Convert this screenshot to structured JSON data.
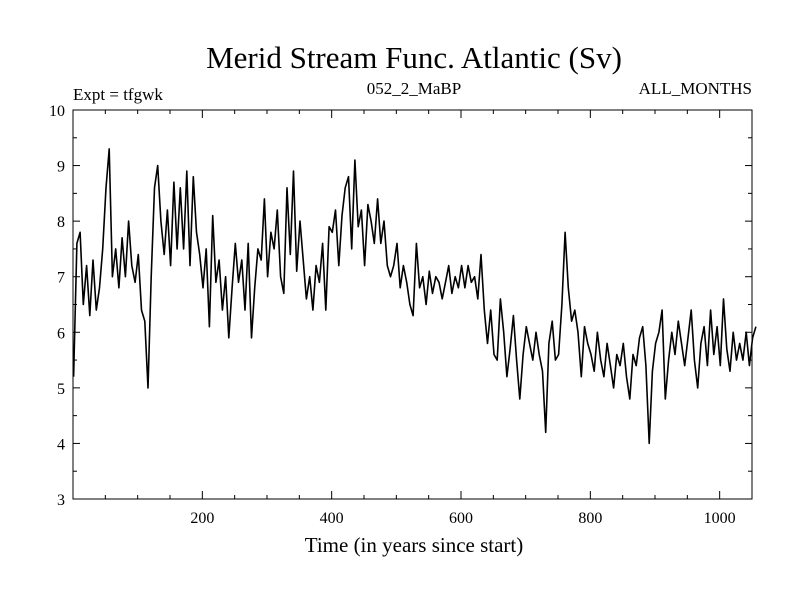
{
  "chart_data": {
    "type": "line",
    "title": "Merid Stream Func. Atlantic (Sv)",
    "subtitle_left": "Expt = tfgwk",
    "subtitle_center": "052_2_MaBP",
    "subtitle_right": "ALL_MONTHS",
    "xlabel": "Time (in years since start)",
    "ylabel": "",
    "xlim": [
      0,
      1050
    ],
    "ylim": [
      3,
      10
    ],
    "x_ticks": [
      200,
      400,
      600,
      800,
      1000
    ],
    "y_ticks": [
      3,
      4,
      5,
      6,
      7,
      8,
      9,
      10
    ],
    "grid": false,
    "line_color": "#000000",
    "series": [
      {
        "name": "Merid Stream Func. Atlantic",
        "x_start": 1,
        "x_step": 5,
        "values": [
          5.2,
          7.6,
          7.8,
          6.5,
          7.2,
          6.3,
          7.3,
          6.4,
          6.8,
          7.5,
          8.6,
          9.3,
          7.0,
          7.5,
          6.8,
          7.7,
          7.0,
          8.0,
          7.2,
          6.9,
          7.4,
          6.4,
          6.2,
          5.0,
          7.0,
          8.6,
          9.0,
          8.0,
          7.4,
          8.2,
          7.2,
          8.7,
          7.5,
          8.6,
          7.5,
          8.9,
          7.2,
          8.8,
          7.8,
          7.4,
          6.8,
          7.5,
          6.1,
          8.1,
          6.9,
          7.3,
          6.4,
          7.0,
          5.9,
          6.8,
          7.6,
          6.9,
          7.3,
          6.4,
          7.6,
          5.9,
          6.8,
          7.5,
          7.3,
          8.4,
          7.0,
          7.8,
          7.5,
          8.2,
          7.0,
          6.7,
          8.6,
          7.4,
          8.9,
          7.1,
          8.0,
          7.3,
          6.6,
          7.0,
          6.4,
          7.2,
          6.9,
          7.6,
          6.4,
          7.9,
          7.8,
          8.2,
          7.2,
          8.1,
          8.6,
          8.8,
          7.5,
          9.1,
          7.9,
          8.2,
          7.2,
          8.3,
          8.0,
          7.6,
          8.4,
          7.6,
          8.0,
          7.2,
          7.0,
          7.2,
          7.6,
          6.8,
          7.2,
          6.9,
          6.5,
          6.3,
          7.6,
          6.8,
          7.0,
          6.5,
          7.1,
          6.7,
          7.0,
          6.9,
          6.6,
          6.9,
          7.2,
          6.7,
          7.0,
          6.8,
          7.2,
          6.8,
          7.2,
          6.9,
          7.0,
          6.6,
          7.4,
          6.4,
          5.8,
          6.4,
          5.6,
          5.5,
          6.6,
          6.0,
          5.2,
          5.7,
          6.3,
          5.5,
          4.8,
          5.6,
          6.1,
          5.8,
          5.5,
          6.0,
          5.6,
          5.3,
          4.2,
          5.8,
          6.2,
          5.5,
          5.6,
          6.5,
          7.8,
          6.8,
          6.2,
          6.4,
          6.0,
          5.2,
          6.1,
          5.8,
          5.6,
          5.3,
          6.0,
          5.5,
          5.2,
          5.8,
          5.4,
          5.0,
          5.6,
          5.4,
          5.8,
          5.2,
          4.8,
          5.6,
          5.4,
          5.9,
          6.1,
          5.4,
          4.0,
          5.3,
          5.8,
          6.0,
          6.4,
          4.8,
          5.5,
          6.0,
          5.6,
          6.2,
          5.8,
          5.4,
          5.9,
          6.4,
          5.5,
          5.0,
          5.8,
          6.1,
          5.4,
          6.4,
          5.6,
          6.1,
          5.4,
          6.6,
          5.7,
          5.3,
          6.0,
          5.5,
          5.8,
          5.5,
          6.0,
          5.4,
          5.9,
          6.1
        ]
      }
    ]
  }
}
